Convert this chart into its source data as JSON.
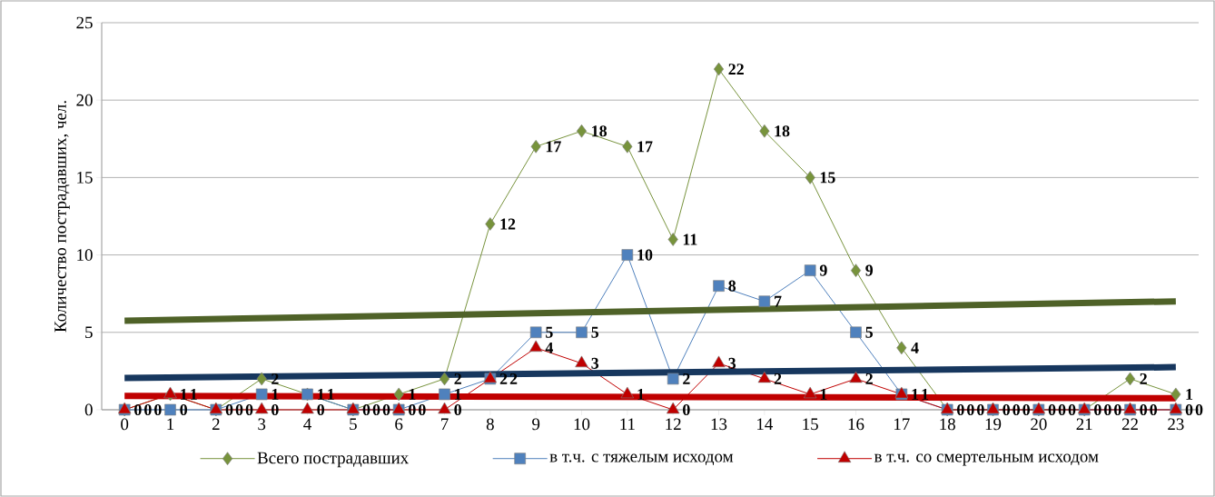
{
  "chart_data": {
    "type": "line",
    "ylabel": "Количество пострадавших, чел.",
    "x": [
      0,
      1,
      2,
      3,
      4,
      5,
      6,
      7,
      8,
      9,
      10,
      11,
      12,
      13,
      14,
      15,
      16,
      17,
      18,
      19,
      20,
      21,
      22,
      23
    ],
    "xlim": [
      -0.5,
      23.5
    ],
    "xticks": [
      0,
      1,
      2,
      3,
      4,
      5,
      6,
      7,
      8,
      9,
      10,
      11,
      12,
      13,
      14,
      15,
      16,
      17,
      18,
      19,
      20,
      21,
      22,
      23
    ],
    "ylim": [
      0,
      25
    ],
    "yticks": [
      0,
      5,
      10,
      15,
      20,
      25
    ],
    "grid": "y",
    "legend": "bottom",
    "series": [
      {
        "name": "Всего пострадавших",
        "color": "#77933c",
        "marker": "diamond",
        "values": [
          0,
          1,
          0,
          2,
          1,
          0,
          1,
          2,
          12,
          17,
          18,
          17,
          11,
          22,
          18,
          15,
          9,
          4,
          0,
          0,
          0,
          0,
          2,
          1
        ],
        "value_labels": [
          "0",
          "1",
          "0",
          "2",
          "1",
          "0",
          "1",
          "2",
          "12",
          "17",
          "18",
          "17",
          "11",
          "22",
          "18",
          "15",
          "9",
          "4",
          "0",
          "0",
          "0",
          "0",
          "2",
          "1"
        ]
      },
      {
        "name": "в т.ч. с тяжелым исходом",
        "color": "#4f81bd",
        "marker": "square",
        "values": [
          0,
          0,
          0,
          1,
          1,
          0,
          0,
          1,
          2,
          5,
          5,
          10,
          2,
          8,
          7,
          9,
          5,
          1,
          0,
          0,
          0,
          0,
          0,
          0
        ],
        "value_labels": [
          "0",
          "0",
          "0",
          "1",
          "1",
          "0",
          "0",
          "1",
          "2",
          "5",
          "5",
          "10",
          "2",
          "8",
          "7",
          "9",
          "5",
          "1",
          "0",
          "0",
          "0",
          "0",
          "0",
          "0"
        ]
      },
      {
        "name": "в т.ч. со смертельным исходом",
        "color": "#c00000",
        "marker": "triangle",
        "values": [
          0,
          1,
          0,
          0,
          0,
          0,
          0,
          0,
          2,
          4,
          3,
          1,
          0,
          3,
          2,
          1,
          2,
          1,
          0,
          0,
          0,
          0,
          0,
          0
        ],
        "value_labels": [
          "0",
          "1",
          "0",
          "0",
          "0",
          "0",
          "0",
          "0",
          "2",
          "4",
          "3",
          "1",
          "0",
          "3",
          "2",
          "1",
          "2",
          "1",
          "0",
          "0",
          "0",
          "0",
          "0",
          "0"
        ]
      },
      {
        "type": "line",
        "color": "#4f6228",
        "marker": "none",
        "values": [
          5.75,
          null,
          null,
          null,
          null,
          null,
          null,
          null,
          null,
          null,
          null,
          null,
          null,
          null,
          null,
          null,
          null,
          null,
          null,
          null,
          null,
          null,
          null,
          7.0
        ]
      },
      {
        "type": "line",
        "color": "#17375e",
        "marker": "none",
        "values": [
          2.05,
          null,
          null,
          null,
          null,
          null,
          null,
          null,
          null,
          null,
          null,
          null,
          null,
          null,
          null,
          null,
          null,
          null,
          null,
          null,
          null,
          null,
          null,
          2.75
        ]
      },
      {
        "type": "line",
        "color": "#c00000",
        "marker": "none",
        "values": [
          0.9,
          null,
          null,
          null,
          null,
          null,
          null,
          null,
          null,
          null,
          null,
          null,
          null,
          null,
          null,
          null,
          null,
          null,
          null,
          null,
          null,
          null,
          null,
          0.75
        ]
      }
    ]
  }
}
